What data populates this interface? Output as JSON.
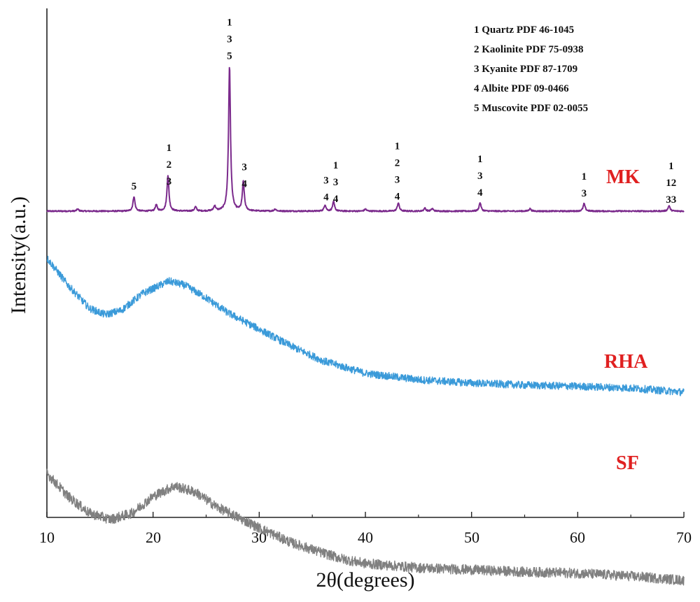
{
  "chart_data": {
    "type": "line",
    "xlabel": "2θ(degrees)",
    "ylabel": "Intensity(a.u.)",
    "xlim": [
      10,
      70
    ],
    "x_ticks": [
      "10",
      "20",
      "30",
      "40",
      "50",
      "60",
      "70"
    ],
    "y_ticks_shown": false,
    "grid": false,
    "legend": {
      "placement": "top-right",
      "entries": [
        {
          "num": "1",
          "text": "1  Quartz  PDF 46-1045"
        },
        {
          "num": "2",
          "text": "2  Kaolinite  PDF 75-0938"
        },
        {
          "num": "3",
          "text": "3  Kyanite  PDF 87-1709"
        },
        {
          "num": "4",
          "text": "4  Albite  PDF 09-0466"
        },
        {
          "num": "5",
          "text": "5  Muscovite  PDF 02-0055"
        }
      ]
    },
    "series": [
      {
        "name": "MK",
        "color": "#7b2a8c",
        "label_color": "#e02020",
        "baseline": 0.0,
        "offset": 4.2,
        "peaks": [
          {
            "x": 12.9,
            "h": 0.05
          },
          {
            "x": 18.2,
            "h": 0.35
          },
          {
            "x": 20.3,
            "h": 0.15
          },
          {
            "x": 21.4,
            "h": 0.85
          },
          {
            "x": 24.0,
            "h": 0.1
          },
          {
            "x": 25.8,
            "h": 0.12
          },
          {
            "x": 27.2,
            "h": 3.45
          },
          {
            "x": 28.5,
            "h": 0.7
          },
          {
            "x": 31.5,
            "h": 0.05
          },
          {
            "x": 36.2,
            "h": 0.15
          },
          {
            "x": 37.0,
            "h": 0.22
          },
          {
            "x": 40.0,
            "h": 0.05
          },
          {
            "x": 43.1,
            "h": 0.2
          },
          {
            "x": 45.6,
            "h": 0.07
          },
          {
            "x": 46.3,
            "h": 0.06
          },
          {
            "x": 50.8,
            "h": 0.2
          },
          {
            "x": 55.5,
            "h": 0.06
          },
          {
            "x": 60.6,
            "h": 0.18
          },
          {
            "x": 68.6,
            "h": 0.13
          }
        ],
        "peak_labels": [
          {
            "x": 18.2,
            "labels": [
              "5"
            ]
          },
          {
            "x": 21.5,
            "labels": [
              "1",
              "2",
              "3"
            ]
          },
          {
            "x": 27.2,
            "labels": [
              "1",
              "3",
              "5"
            ]
          },
          {
            "x": 28.6,
            "labels": [
              "3",
              "4"
            ]
          },
          {
            "x": 36.3,
            "labels": [
              "3",
              "4"
            ]
          },
          {
            "x": 37.2,
            "labels": [
              "1",
              "3",
              "4"
            ]
          },
          {
            "x": 43.0,
            "labels": [
              "1",
              "2",
              "3",
              "4"
            ]
          },
          {
            "x": 50.8,
            "labels": [
              "1",
              "3",
              "4"
            ]
          },
          {
            "x": 60.6,
            "labels": [
              "1",
              "3"
            ]
          },
          {
            "x": 68.8,
            "labels": [
              "1",
              "12",
              "33"
            ]
          }
        ]
      },
      {
        "name": "RHA",
        "color": "#3a9ad9",
        "label_color": "#e02020",
        "profile": [
          [
            10,
            3.1
          ],
          [
            12,
            2.45
          ],
          [
            14,
            1.9
          ],
          [
            15.5,
            1.75
          ],
          [
            17,
            1.85
          ],
          [
            19,
            2.25
          ],
          [
            21.5,
            2.55
          ],
          [
            23,
            2.45
          ],
          [
            25,
            2.15
          ],
          [
            27,
            1.8
          ],
          [
            30,
            1.4
          ],
          [
            33,
            1.0
          ],
          [
            36,
            0.65
          ],
          [
            38,
            0.5
          ],
          [
            40,
            0.35
          ],
          [
            45,
            0.2
          ],
          [
            50,
            0.12
          ],
          [
            55,
            0.07
          ],
          [
            60,
            0.04
          ],
          [
            65,
            0.0
          ],
          [
            70,
            -0.1
          ]
        ],
        "noise": 0.09
      },
      {
        "name": "SF",
        "color": "#808080",
        "label_color": "#e02020",
        "profile": [
          [
            10,
            0.5
          ],
          [
            12,
            -0.05
          ],
          [
            14,
            -0.45
          ],
          [
            16,
            -0.6
          ],
          [
            18,
            -0.45
          ],
          [
            20,
            -0.05
          ],
          [
            22,
            0.2
          ],
          [
            24,
            0.05
          ],
          [
            26,
            -0.3
          ],
          [
            28,
            -0.55
          ],
          [
            30,
            -0.8
          ],
          [
            33,
            -1.15
          ],
          [
            36,
            -1.4
          ],
          [
            38,
            -1.55
          ],
          [
            40,
            -1.65
          ],
          [
            45,
            -1.75
          ],
          [
            50,
            -1.8
          ],
          [
            55,
            -1.85
          ],
          [
            60,
            -1.88
          ],
          [
            65,
            -1.95
          ],
          [
            70,
            -2.05
          ]
        ],
        "noise": 0.12
      }
    ]
  }
}
